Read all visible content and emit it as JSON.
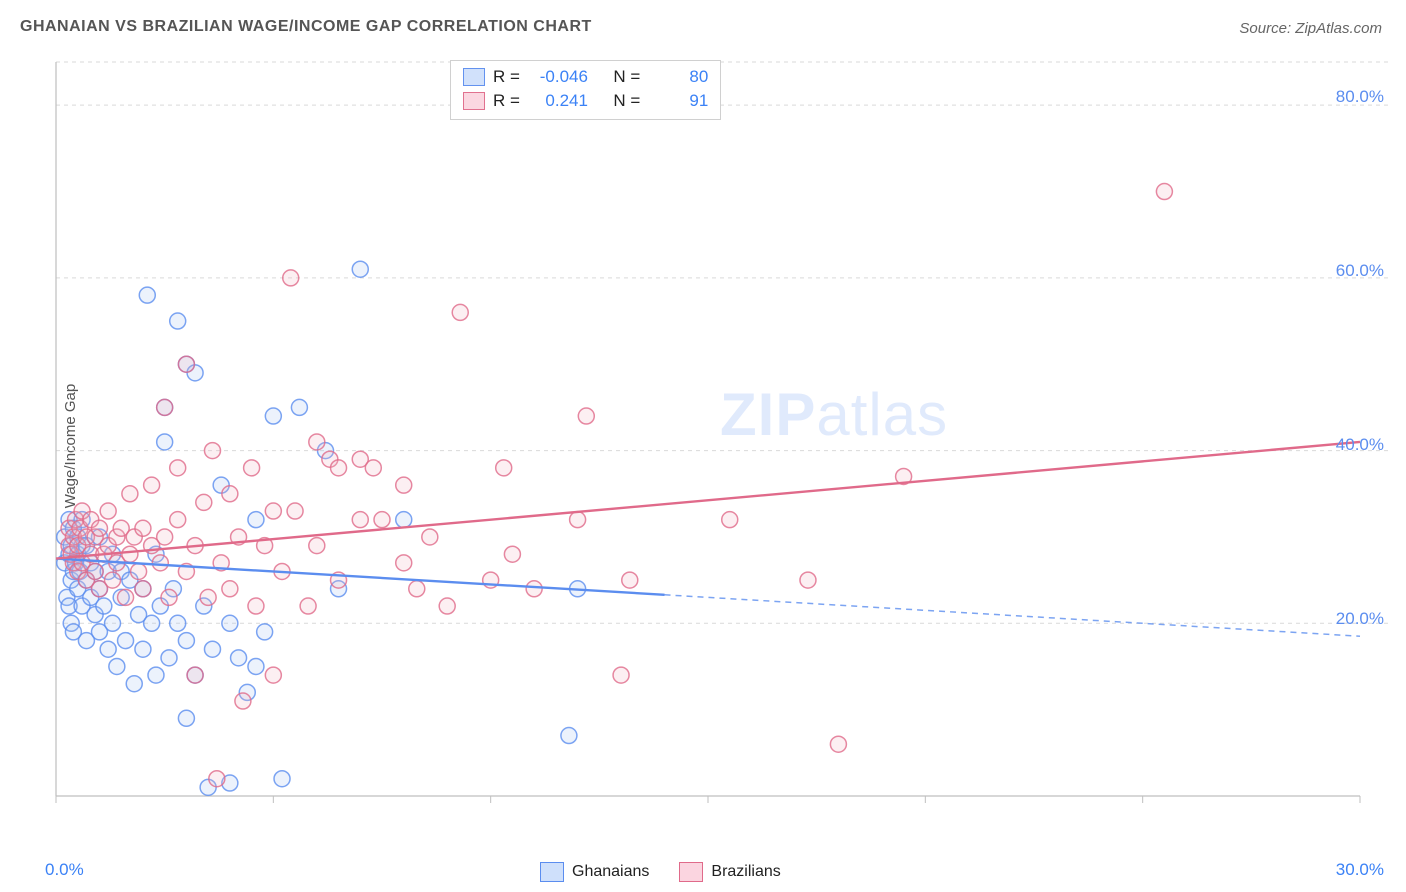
{
  "title": "GHANAIAN VS BRAZILIAN WAGE/INCOME GAP CORRELATION CHART",
  "source_prefix": "Source: ",
  "source_name": "ZipAtlas.com",
  "y_axis_label": "Wage/Income Gap",
  "watermark": "ZIPatlas",
  "chart": {
    "type": "scatter",
    "xlim": [
      0,
      30
    ],
    "ylim": [
      0,
      85
    ],
    "x_ticks": [
      0,
      5,
      10,
      15,
      20,
      25,
      30
    ],
    "x_tick_labels_shown": {
      "0": "0.0%",
      "30": "30.0%"
    },
    "y_gridlines": [
      20,
      40,
      60,
      80
    ],
    "y_tick_labels": {
      "20": "20.0%",
      "40": "40.0%",
      "60": "60.0%",
      "80": "80.0%"
    },
    "background_color": "#ffffff",
    "grid_color": "#d9d9d9",
    "grid_dash": "4 4",
    "axis_color": "#bfbfbf",
    "tick_color": "#bfbfbf",
    "marker_radius": 8,
    "marker_stroke_width": 1.5,
    "marker_fill_opacity": 0.22,
    "value_text_color": "#3b82f6",
    "y_label_color": "#5b8def",
    "x_label_color": "#3b82f6",
    "trend_line_width": 2.4
  },
  "series": [
    {
      "key": "ghanaians",
      "label": "Ghanaians",
      "color_stroke": "#5b8def",
      "color_fill": "#a8c5f0",
      "swatch_fill": "#cfe0fb",
      "swatch_border": "#5b8def",
      "R": "-0.046",
      "N": "80",
      "trend": {
        "y_at_x0": 27.5,
        "y_at_xmax": 18.5,
        "solid_until_x": 14,
        "dash": "6 5"
      },
      "points": [
        [
          0.2,
          27
        ],
        [
          0.2,
          30
        ],
        [
          0.25,
          23
        ],
        [
          0.3,
          32
        ],
        [
          0.3,
          28
        ],
        [
          0.3,
          22
        ],
        [
          0.35,
          20
        ],
        [
          0.35,
          25
        ],
        [
          0.35,
          29
        ],
        [
          0.4,
          31
        ],
        [
          0.4,
          26
        ],
        [
          0.4,
          19
        ],
        [
          0.45,
          27
        ],
        [
          0.5,
          24
        ],
        [
          0.5,
          30
        ],
        [
          0.5,
          28
        ],
        [
          0.55,
          26
        ],
        [
          0.6,
          22
        ],
        [
          0.6,
          29
        ],
        [
          0.6,
          32
        ],
        [
          0.7,
          18
        ],
        [
          0.7,
          25
        ],
        [
          0.7,
          29
        ],
        [
          0.8,
          23
        ],
        [
          0.8,
          27
        ],
        [
          0.9,
          21
        ],
        [
          0.9,
          26
        ],
        [
          1.0,
          19
        ],
        [
          1.0,
          24
        ],
        [
          1.0,
          30
        ],
        [
          1.1,
          22
        ],
        [
          1.2,
          26
        ],
        [
          1.2,
          17
        ],
        [
          1.3,
          20
        ],
        [
          1.3,
          28
        ],
        [
          1.4,
          15
        ],
        [
          1.5,
          23
        ],
        [
          1.5,
          26
        ],
        [
          1.6,
          18
        ],
        [
          1.7,
          25
        ],
        [
          1.8,
          13
        ],
        [
          1.9,
          21
        ],
        [
          2.0,
          24
        ],
        [
          2.0,
          17
        ],
        [
          2.1,
          58
        ],
        [
          2.2,
          20
        ],
        [
          2.3,
          14
        ],
        [
          2.3,
          28
        ],
        [
          2.4,
          22
        ],
        [
          2.5,
          45
        ],
        [
          2.5,
          41
        ],
        [
          2.6,
          16
        ],
        [
          2.7,
          24
        ],
        [
          2.8,
          55
        ],
        [
          2.8,
          20
        ],
        [
          3.0,
          50
        ],
        [
          3.0,
          18
        ],
        [
          3.0,
          9
        ],
        [
          3.2,
          49
        ],
        [
          3.2,
          14
        ],
        [
          3.4,
          22
        ],
        [
          3.5,
          1
        ],
        [
          3.6,
          17
        ],
        [
          3.8,
          36
        ],
        [
          4.0,
          20
        ],
        [
          4.0,
          1.5
        ],
        [
          4.2,
          16
        ],
        [
          4.4,
          12
        ],
        [
          4.6,
          15
        ],
        [
          4.6,
          32
        ],
        [
          4.8,
          19
        ],
        [
          5.0,
          44
        ],
        [
          5.2,
          2
        ],
        [
          5.6,
          45
        ],
        [
          6.2,
          40
        ],
        [
          6.5,
          24
        ],
        [
          7.0,
          61
        ],
        [
          8.0,
          32
        ],
        [
          11.8,
          7
        ],
        [
          12.0,
          24
        ]
      ]
    },
    {
      "key": "brazilians",
      "label": "Brazilians",
      "color_stroke": "#e06a8a",
      "color_fill": "#f2b8c6",
      "swatch_fill": "#fbd5e0",
      "swatch_border": "#e06a8a",
      "R": "0.241",
      "N": "91",
      "trend": {
        "y_at_x0": 27.5,
        "y_at_xmax": 41,
        "solid_until_x": 30,
        "dash": null
      },
      "points": [
        [
          0.3,
          29
        ],
        [
          0.3,
          31
        ],
        [
          0.35,
          28
        ],
        [
          0.4,
          30
        ],
        [
          0.4,
          27
        ],
        [
          0.45,
          32
        ],
        [
          0.5,
          29
        ],
        [
          0.5,
          26
        ],
        [
          0.55,
          31
        ],
        [
          0.6,
          27
        ],
        [
          0.6,
          33
        ],
        [
          0.7,
          30
        ],
        [
          0.7,
          25
        ],
        [
          0.8,
          32
        ],
        [
          0.8,
          28
        ],
        [
          0.9,
          30
        ],
        [
          0.9,
          26
        ],
        [
          1.0,
          31
        ],
        [
          1.0,
          24
        ],
        [
          1.1,
          28
        ],
        [
          1.2,
          29
        ],
        [
          1.2,
          33
        ],
        [
          1.3,
          25
        ],
        [
          1.4,
          30
        ],
        [
          1.4,
          27
        ],
        [
          1.5,
          31
        ],
        [
          1.6,
          23
        ],
        [
          1.7,
          28
        ],
        [
          1.7,
          35
        ],
        [
          1.8,
          30
        ],
        [
          1.9,
          26
        ],
        [
          2.0,
          31
        ],
        [
          2.0,
          24
        ],
        [
          2.2,
          29
        ],
        [
          2.2,
          36
        ],
        [
          2.4,
          27
        ],
        [
          2.5,
          45
        ],
        [
          2.5,
          30
        ],
        [
          2.6,
          23
        ],
        [
          2.8,
          32
        ],
        [
          2.8,
          38
        ],
        [
          3.0,
          26
        ],
        [
          3.0,
          50
        ],
        [
          3.2,
          29
        ],
        [
          3.2,
          14
        ],
        [
          3.4,
          34
        ],
        [
          3.5,
          23
        ],
        [
          3.6,
          40
        ],
        [
          3.7,
          2
        ],
        [
          3.8,
          27
        ],
        [
          4.0,
          35
        ],
        [
          4.0,
          24
        ],
        [
          4.2,
          30
        ],
        [
          4.3,
          11
        ],
        [
          4.5,
          38
        ],
        [
          4.6,
          22
        ],
        [
          4.8,
          29
        ],
        [
          5.0,
          33
        ],
        [
          5.0,
          14
        ],
        [
          5.2,
          26
        ],
        [
          5.4,
          60
        ],
        [
          5.5,
          33
        ],
        [
          5.8,
          22
        ],
        [
          6.0,
          41
        ],
        [
          6.0,
          29
        ],
        [
          6.3,
          39
        ],
        [
          6.5,
          38
        ],
        [
          6.5,
          25
        ],
        [
          7.0,
          32
        ],
        [
          7.0,
          39
        ],
        [
          7.3,
          38
        ],
        [
          7.5,
          32
        ],
        [
          8.0,
          27
        ],
        [
          8.0,
          36
        ],
        [
          8.3,
          24
        ],
        [
          8.6,
          30
        ],
        [
          9.0,
          22
        ],
        [
          9.3,
          56
        ],
        [
          10.0,
          25
        ],
        [
          10.3,
          38
        ],
        [
          10.5,
          28
        ],
        [
          11.0,
          24
        ],
        [
          12.0,
          32
        ],
        [
          12.2,
          44
        ],
        [
          13.0,
          14
        ],
        [
          13.2,
          25
        ],
        [
          15.5,
          32
        ],
        [
          18.0,
          6
        ],
        [
          19.5,
          37
        ],
        [
          25.5,
          70
        ],
        [
          17.3,
          25
        ]
      ]
    }
  ],
  "legend_top": {
    "R_label": "R =",
    "N_label": "N ="
  }
}
